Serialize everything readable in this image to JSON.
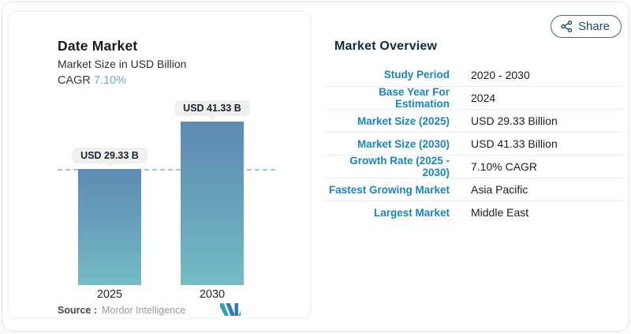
{
  "share": {
    "label": "Share"
  },
  "chart_data": {
    "type": "bar",
    "title": "Date Market",
    "subtitle": "Market Size in USD Billion",
    "cagr_label": "CAGR",
    "cagr_value": "7.10%",
    "categories": [
      "2025",
      "2030"
    ],
    "values": [
      29.33,
      41.33
    ],
    "bar_labels": [
      "USD 29.33 B",
      "USD 41.33 B"
    ],
    "unit": "USD Billion",
    "reference_line": 29.33,
    "ylim": [
      0,
      45
    ],
    "grid": "off",
    "source_label": "Source :",
    "source_name": "Mordor Intelligence"
  },
  "overview": {
    "heading": "Market Overview",
    "rows": [
      {
        "label": "Study Period",
        "value": "2020 - 2030"
      },
      {
        "label": "Base Year For Estimation",
        "value": "2024"
      },
      {
        "label": "Market Size (2025)",
        "value": "USD 29.33 Billion"
      },
      {
        "label": "Market Size (2030)",
        "value": "USD 41.33 Billion"
      },
      {
        "label": "Growth Rate (2025 - 2030)",
        "value": "7.10% CAGR"
      },
      {
        "label": "Fastest Growing Market",
        "value": "Asia Pacific"
      },
      {
        "label": "Largest Market",
        "value": "Middle East"
      }
    ]
  },
  "colors": {
    "accent_blue": "#1787b9",
    "heading_navy": "#142a3d",
    "bar_gradient_top": "#5d8bb3",
    "bar_gradient_bottom": "#74bcc4",
    "cagr_value": "#79a9c9",
    "share_button": "#1d4a66",
    "logo_teal": "#2aa7ad",
    "logo_blue": "#2e7cb8"
  }
}
